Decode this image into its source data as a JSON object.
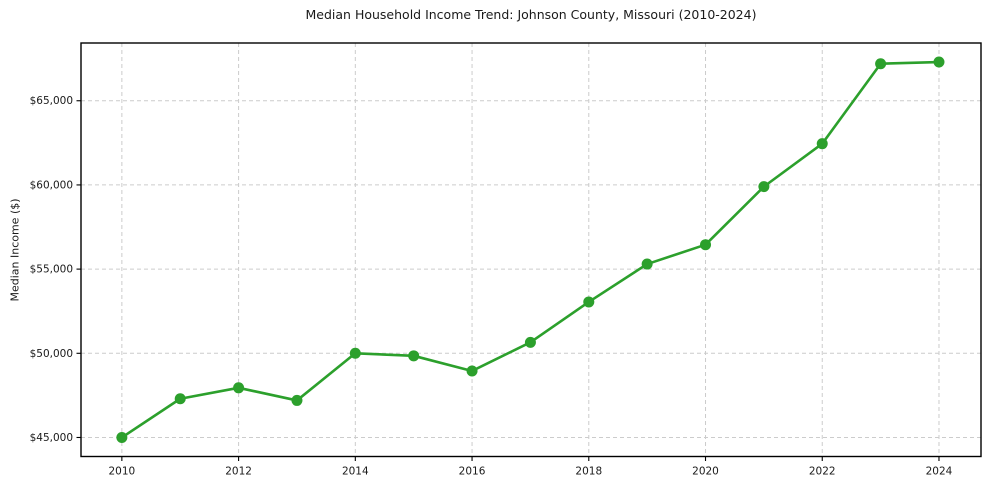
{
  "chart_data": {
    "type": "line",
    "title": "Median Household Income Trend: Johnson County, Missouri (2010-2024)",
    "xlabel": "",
    "ylabel": "Median Income ($)",
    "x": [
      2010,
      2011,
      2012,
      2013,
      2014,
      2015,
      2016,
      2017,
      2018,
      2019,
      2020,
      2021,
      2022,
      2023,
      2024
    ],
    "values": [
      45000,
      47300,
      47950,
      47200,
      50000,
      49850,
      48950,
      50650,
      53050,
      55300,
      56450,
      59900,
      62450,
      67200,
      67300
    ],
    "series_name": "Median Household Income",
    "x_ticks": [
      2010,
      2012,
      2014,
      2016,
      2018,
      2020,
      2022,
      2024
    ],
    "x_tick_labels": [
      "2010",
      "2012",
      "2014",
      "2016",
      "2018",
      "2020",
      "2022",
      "2024"
    ],
    "y_ticks": [
      45000,
      50000,
      55000,
      60000,
      65000
    ],
    "y_tick_labels": [
      "$45,000",
      "$50,000",
      "$55,000",
      "$60,000",
      "$65,000"
    ],
    "xlim": [
      2009.3,
      2024.72
    ],
    "ylim": [
      43870,
      68430
    ],
    "grid": true,
    "grid_style": "dashed",
    "legend": "none",
    "line_color": "#2ca02c",
    "marker": "circle",
    "grid_color": "#cccccc",
    "text_color": "#1a1a1a",
    "spine_color": "#000000",
    "background_color": "#ffffff"
  }
}
